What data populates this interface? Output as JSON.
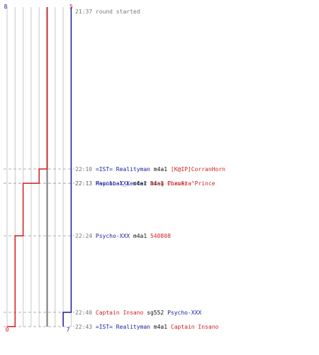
{
  "chart_data": {
    "type": "line",
    "title": "",
    "series": [
      {
        "color": "#1a1aa6",
        "start_score": "8",
        "end_score": "7"
      },
      {
        "color": "#d01f1f",
        "start_score": "5",
        "end_score": "0"
      }
    ],
    "events": [
      {
        "time": "21:37",
        "text": "round started",
        "blue_score": 8,
        "red_score": 5,
        "parts": [
          {
            "t": "round started",
            "c": "gray"
          }
        ]
      },
      {
        "time": "22:10",
        "text": "=IST= Realityman m4a1 [K@IP]CorranHorn",
        "blue_score": 8,
        "red_score": 4,
        "parts": [
          {
            "t": "=IST= Realityman",
            "c": "blue"
          },
          {
            "t": "m4a1",
            "c": "black"
          },
          {
            "t": "[K@IP]CorranHorn",
            "c": "red"
          }
        ]
      },
      {
        "time": "22:13",
        "text": "Hannibal_Lecter m4a1 PornSta^Prince",
        "blue_score": 8,
        "red_score": 3,
        "parts": [
          {
            "t": "Hannibal_Lecter",
            "c": "blue"
          },
          {
            "t": "m4a1",
            "c": "black"
          },
          {
            "t": "PornSta^Prince",
            "c": "red"
          }
        ]
      },
      {
        "time": "22:13",
        "text": "Psycho-XXX m4a1 Ding Chavez",
        "blue_score": 8,
        "red_score": 2,
        "parts": [
          {
            "t": "Psycho-XXX",
            "c": "blue"
          },
          {
            "t": "m4a1",
            "c": "black"
          },
          {
            "t": "Ding Chavez",
            "c": "red"
          }
        ]
      },
      {
        "time": "22:24",
        "text": "Psycho-XXX m4a1 540808",
        "blue_score": 8,
        "red_score": 1,
        "parts": [
          {
            "t": "Psycho-XXX",
            "c": "blue"
          },
          {
            "t": "m4a1",
            "c": "black"
          },
          {
            "t": "540808",
            "c": "red"
          }
        ]
      },
      {
        "time": "22:40",
        "text": "Captain Insano sg552 Psycho-XXX",
        "blue_score": 7,
        "red_score": 1,
        "parts": [
          {
            "t": "Captain Insano",
            "c": "red"
          },
          {
            "t": "sg552",
            "c": "black"
          },
          {
            "t": "Psycho-XXX",
            "c": "blue"
          }
        ]
      },
      {
        "time": "22:43",
        "text": "=IST= Realityman m4a1 Captain Insano",
        "blue_score": 7,
        "red_score": 0,
        "parts": [
          {
            "t": "=IST= Realityman",
            "c": "blue"
          },
          {
            "t": "m4a1",
            "c": "black"
          },
          {
            "t": "Captain Insano",
            "c": "red"
          }
        ]
      }
    ],
    "time_start": "21:37",
    "time_end": "22:43",
    "score_max": 8,
    "grid": true
  }
}
